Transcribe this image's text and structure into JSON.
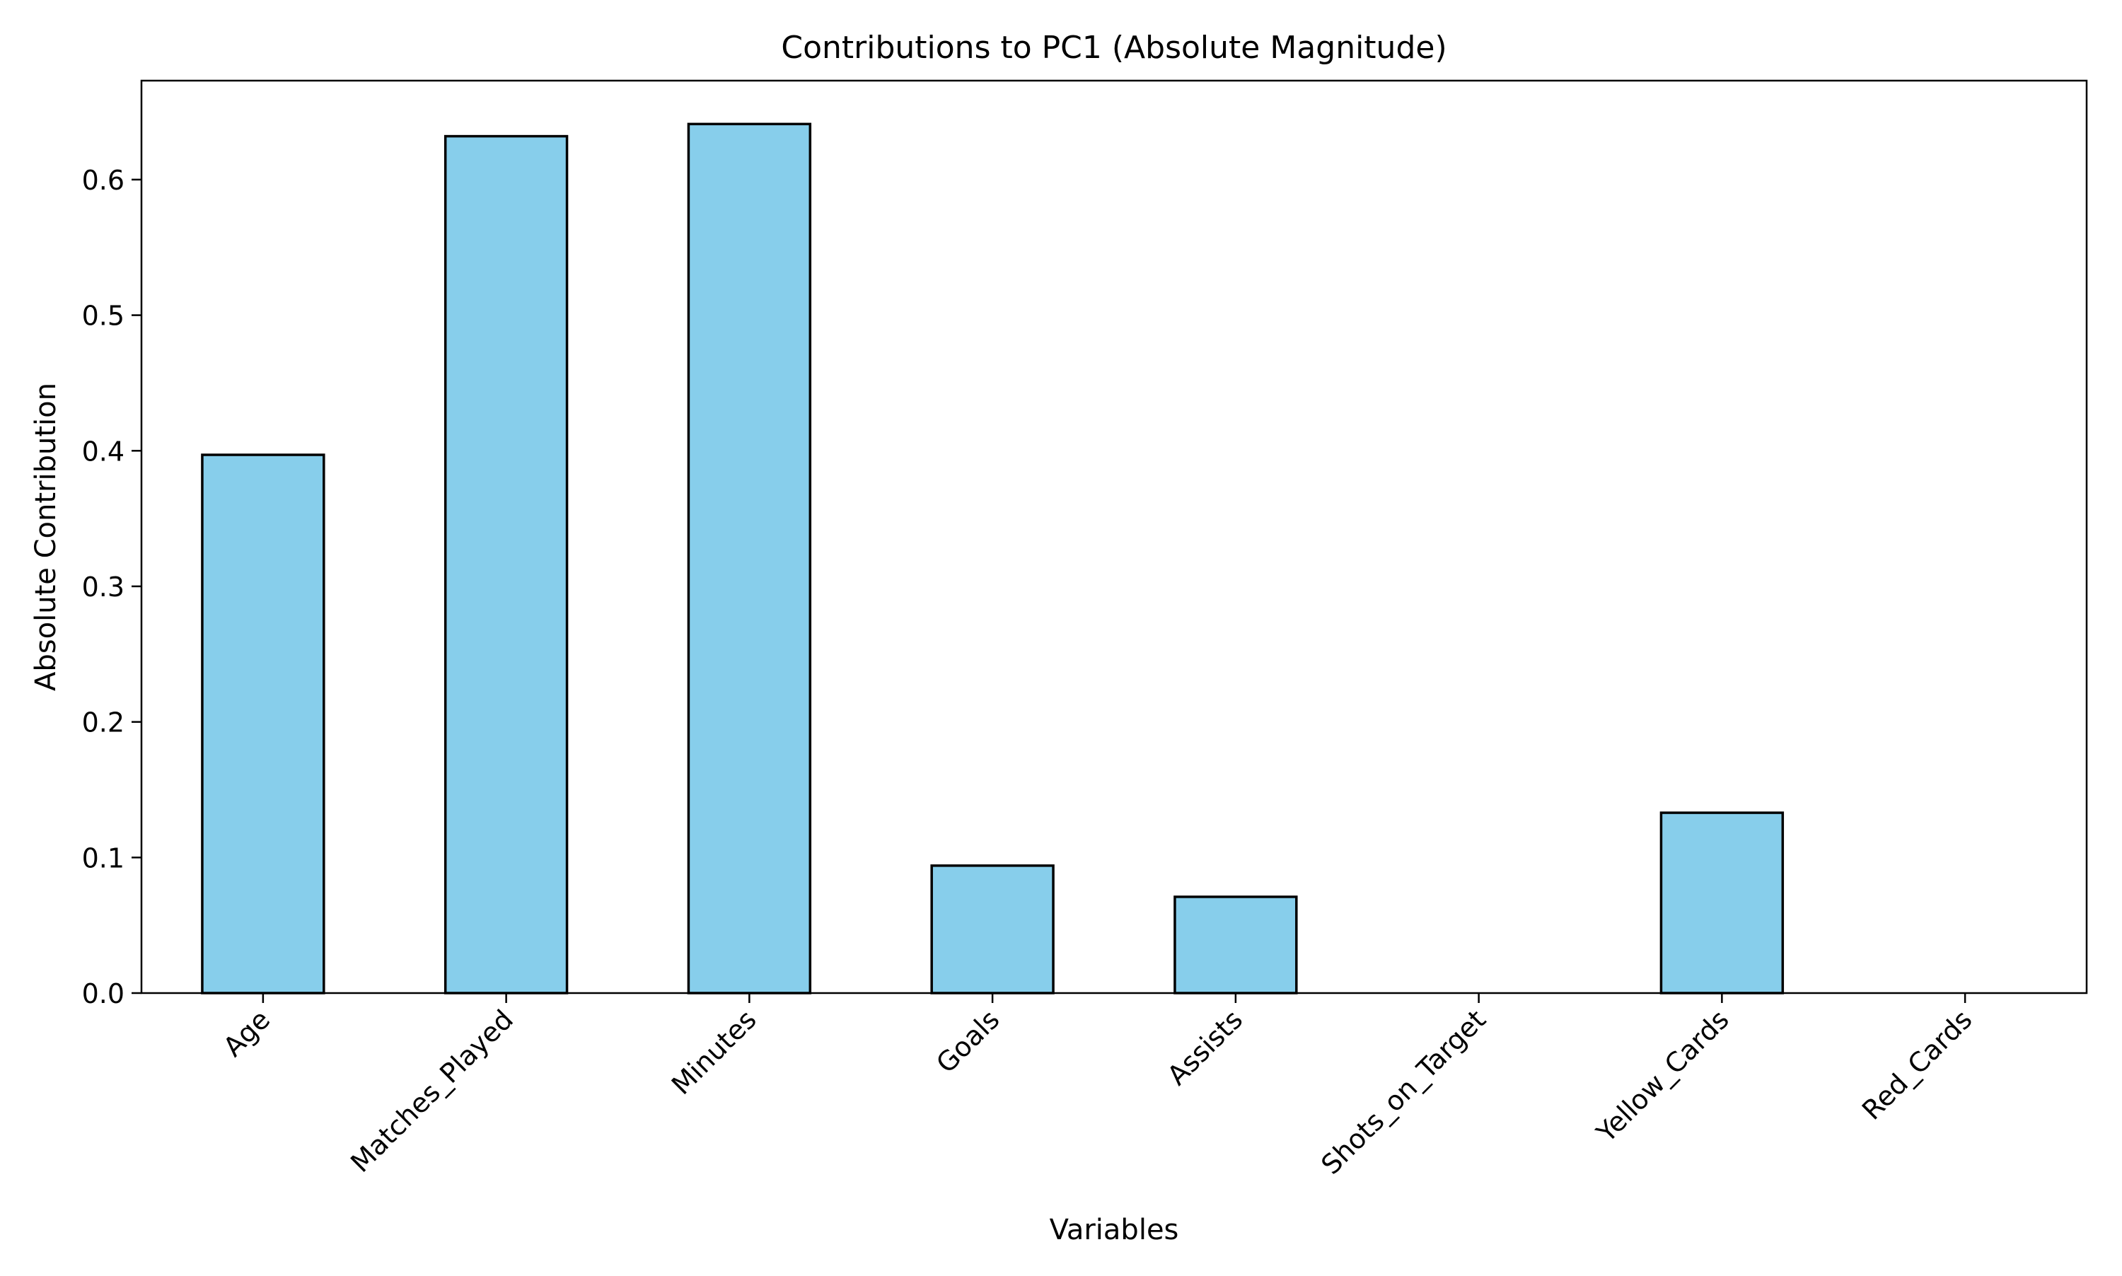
{
  "chart_data": {
    "type": "bar",
    "title": "Contributions to PC1 (Absolute Magnitude)",
    "xlabel": "Variables",
    "ylabel": "Absolute Contribution",
    "categories": [
      "Age",
      "Matches_Played",
      "Minutes",
      "Goals",
      "Assists",
      "Shots_on_Target",
      "Yellow_Cards",
      "Red_Cards"
    ],
    "values": [
      0.397,
      0.632,
      0.641,
      0.094,
      0.071,
      0.0,
      0.133,
      0.0
    ],
    "ylim": [
      0,
      0.673
    ],
    "yticks": [
      0.0,
      0.1,
      0.2,
      0.3,
      0.4,
      0.5,
      0.6
    ],
    "ytick_labels": [
      "0.0",
      "0.1",
      "0.2",
      "0.3",
      "0.4",
      "0.5",
      "0.6"
    ],
    "bar_color": "#87ceeb",
    "bar_edge_color": "#000000",
    "grid": false,
    "legend": "none"
  }
}
